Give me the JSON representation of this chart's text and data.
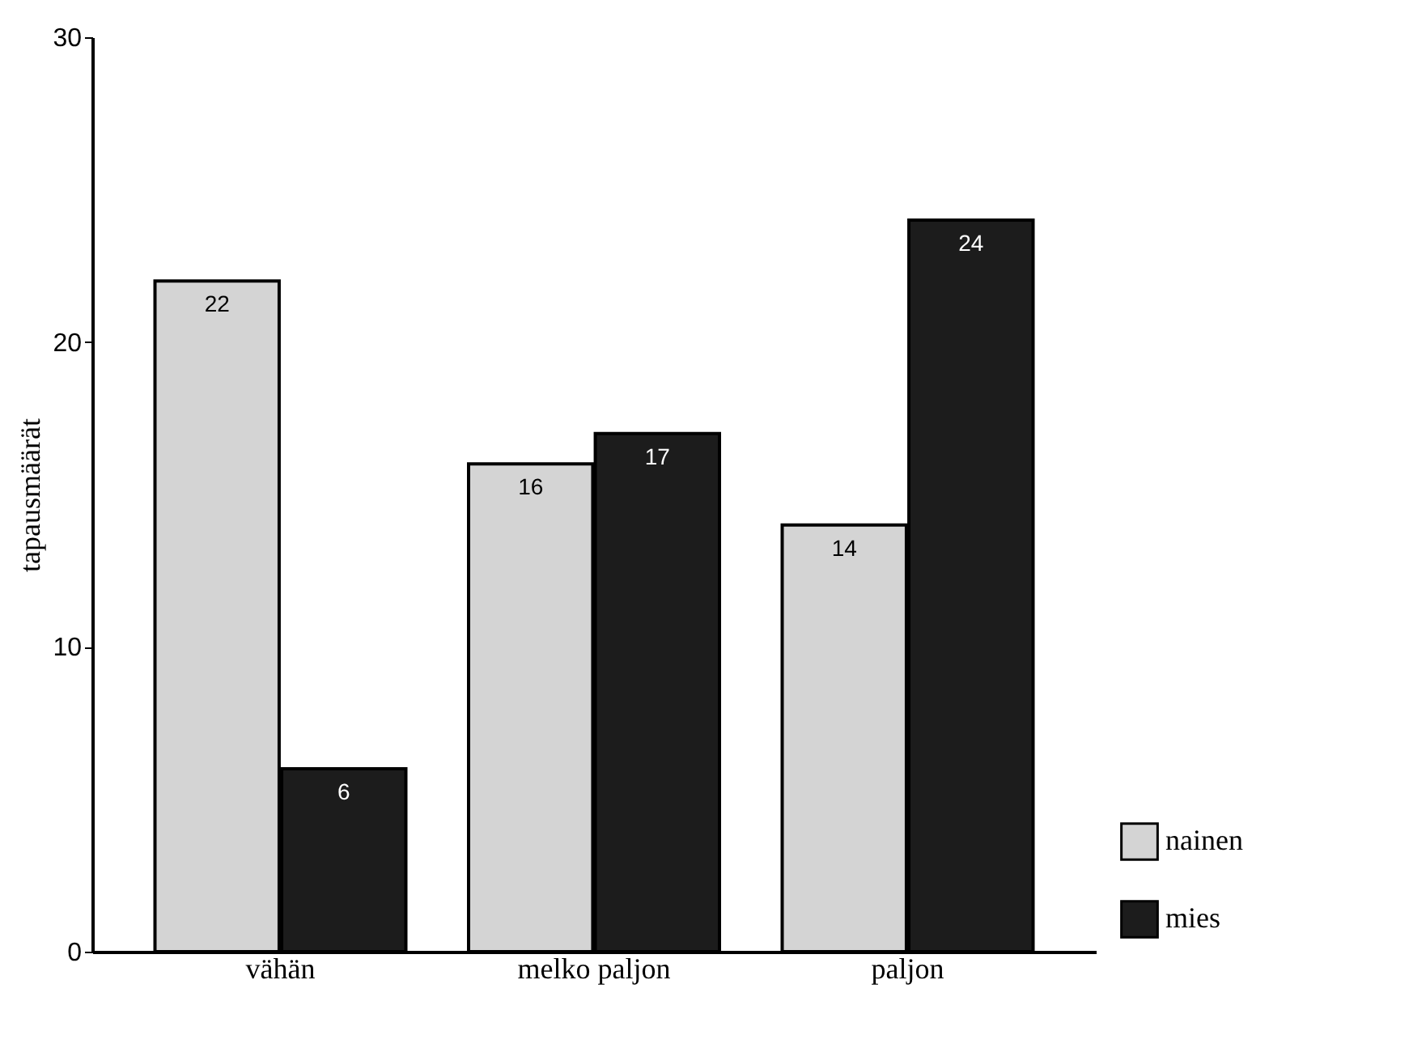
{
  "chart_data": {
    "type": "bar",
    "categories": [
      "vähän",
      "melko paljon",
      "paljon"
    ],
    "series": [
      {
        "name": "nainen",
        "color": "#d4d4d4",
        "values": [
          22,
          16,
          14
        ]
      },
      {
        "name": "mies",
        "color": "#1c1c1c",
        "values": [
          6,
          17,
          24
        ]
      }
    ],
    "ylabel": "tapausmäärät",
    "ylim": [
      0,
      30
    ],
    "yticks": [
      0,
      10,
      20,
      30
    ],
    "grid": false,
    "legend": "bottom right",
    "data_labels": true
  }
}
